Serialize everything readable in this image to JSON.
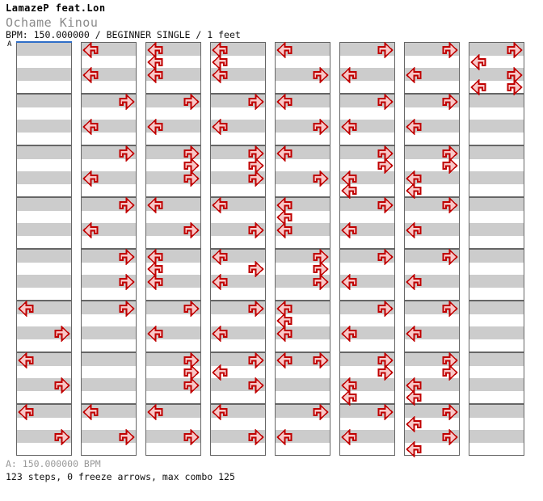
{
  "header": {
    "artist": "LamazeP feat.Lon",
    "title": "Ochame Kinou",
    "meta": "BPM: 150.000000 / BEGINNER SINGLE / 1 feet"
  },
  "footer": {
    "bpm_line": "A: 150.000000 BPM",
    "stats_line": "123 steps, 0 freeze arrows, max combo 125"
  },
  "colors": {
    "arrow_fill": "#f8c8c8",
    "arrow_stroke": "#c00000",
    "row_gray": "#cccccc",
    "row_white": "#ffffff",
    "measure_border": "#666666",
    "segment_marker_blue": "#2f6ec8"
  },
  "chart_data": {
    "type": "step-chart",
    "marker": "A",
    "bpm": "150.000000",
    "difficulty": "BEGINNER SINGLE",
    "feet": 1,
    "steps": 123,
    "freeze_arrows": 0,
    "max_combo": 125,
    "measures_per_column": 8,
    "rows_per_measure": 4,
    "lane_codes": {
      "L": "left",
      "D": "down",
      "U": "up",
      "R": "right"
    },
    "columns": [
      [
        [
          "",
          "",
          "",
          ""
        ],
        [
          "",
          "",
          "",
          ""
        ],
        [
          "",
          "",
          "",
          ""
        ],
        [
          "",
          "",
          "",
          ""
        ],
        [
          "",
          "",
          "",
          ""
        ],
        [
          "L",
          "",
          "R",
          ""
        ],
        [
          "L",
          "",
          "R",
          ""
        ],
        [
          "L",
          "",
          "R",
          ""
        ]
      ],
      [
        [
          "L",
          "",
          "L",
          ""
        ],
        [
          "R",
          "",
          "L",
          ""
        ],
        [
          "R",
          "",
          "L",
          ""
        ],
        [
          "R",
          "",
          "L",
          ""
        ],
        [
          "R",
          "",
          "R",
          ""
        ],
        [
          "R",
          "",
          "",
          ""
        ],
        [
          "",
          "",
          "",
          ""
        ],
        [
          "L",
          "",
          "R",
          ""
        ]
      ],
      [
        [
          "L",
          "L",
          "L",
          ""
        ],
        [
          "R",
          "",
          "L",
          ""
        ],
        [
          "R",
          "R",
          "R",
          ""
        ],
        [
          "L",
          "",
          "R",
          ""
        ],
        [
          "L",
          "L",
          "L",
          ""
        ],
        [
          "R",
          "",
          "L",
          ""
        ],
        [
          "R",
          "R",
          "R",
          ""
        ],
        [
          "L",
          "",
          "R",
          ""
        ]
      ],
      [
        [
          "L",
          "L",
          "L",
          ""
        ],
        [
          "R",
          "",
          "L",
          ""
        ],
        [
          "R",
          "R",
          "R",
          ""
        ],
        [
          "L",
          "",
          "R",
          ""
        ],
        [
          "L",
          "R",
          "L",
          ""
        ],
        [
          "R",
          "",
          "L",
          ""
        ],
        [
          "R",
          "L",
          "R",
          ""
        ],
        [
          "L",
          "",
          "R",
          ""
        ]
      ],
      [
        [
          "L",
          "",
          "R",
          ""
        ],
        [
          "L",
          "",
          "R",
          ""
        ],
        [
          "L",
          "",
          "R",
          ""
        ],
        [
          "L",
          "L",
          "L",
          ""
        ],
        [
          "R",
          "R",
          "R",
          ""
        ],
        [
          "L",
          "L",
          "L",
          ""
        ],
        [
          "LR",
          "",
          "",
          ""
        ],
        [
          "R",
          "",
          "L",
          ""
        ]
      ],
      [
        [
          "R",
          "",
          "L",
          ""
        ],
        [
          "R",
          "",
          "L",
          ""
        ],
        [
          "R",
          "R",
          "L",
          "L"
        ],
        [
          "R",
          "",
          "L",
          ""
        ],
        [
          "R",
          "",
          "L",
          ""
        ],
        [
          "R",
          "",
          "L",
          ""
        ],
        [
          "R",
          "R",
          "L",
          "L"
        ],
        [
          "R",
          "",
          "L",
          ""
        ]
      ],
      [
        [
          "R",
          "",
          "L",
          ""
        ],
        [
          "R",
          "",
          "L",
          ""
        ],
        [
          "R",
          "R",
          "L",
          "L"
        ],
        [
          "R",
          "",
          "L",
          ""
        ],
        [
          "R",
          "",
          "L",
          ""
        ],
        [
          "R",
          "",
          "L",
          ""
        ],
        [
          "R",
          "R",
          "L",
          "L"
        ],
        [
          "R",
          "L",
          "R",
          "L"
        ]
      ],
      [
        [
          "R",
          "L",
          "R",
          "LR"
        ],
        [
          "",
          "",
          "",
          ""
        ],
        [
          "",
          "",
          "",
          ""
        ],
        [
          "",
          "",
          "",
          ""
        ],
        [
          "",
          "",
          "",
          ""
        ],
        [
          "",
          "",
          "",
          ""
        ],
        [
          "",
          "",
          "",
          ""
        ],
        [
          "",
          "",
          "",
          ""
        ]
      ]
    ]
  }
}
